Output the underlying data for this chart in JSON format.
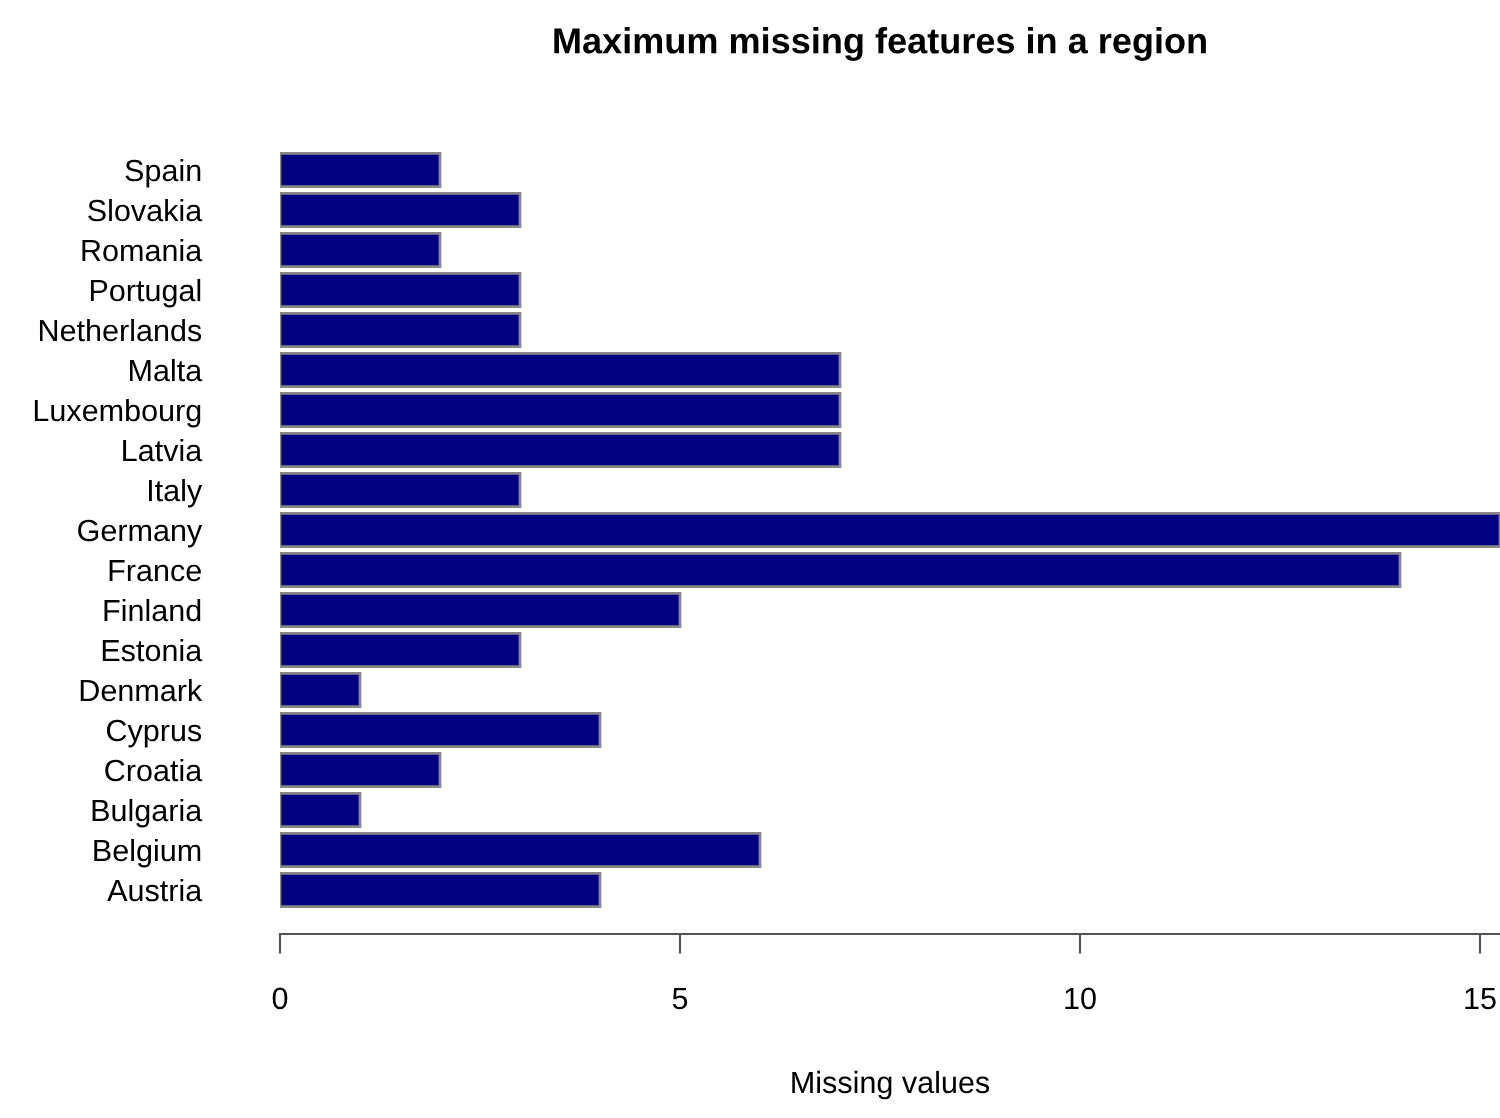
{
  "chart_data": {
    "type": "bar",
    "orientation": "horizontal",
    "title": "Maximum missing features in a region",
    "xlabel": "Missing values",
    "categories": [
      "Spain",
      "Slovakia",
      "Romania",
      "Portugal",
      "Netherlands",
      "Malta",
      "Luxembourg",
      "Latvia",
      "Italy",
      "Germany",
      "France",
      "Finland",
      "Estonia",
      "Denmark",
      "Cyprus",
      "Croatia",
      "Bulgaria",
      "Belgium",
      "Austria"
    ],
    "values": [
      2,
      3,
      2,
      3,
      3,
      7,
      7,
      7,
      3,
      15.25,
      14,
      5,
      3,
      1,
      4,
      2,
      1,
      6,
      4
    ],
    "color": "#000080",
    "xlim": [
      0,
      15.25
    ],
    "xticks": [
      0,
      5,
      10,
      15
    ],
    "grid": false,
    "legend": false
  }
}
